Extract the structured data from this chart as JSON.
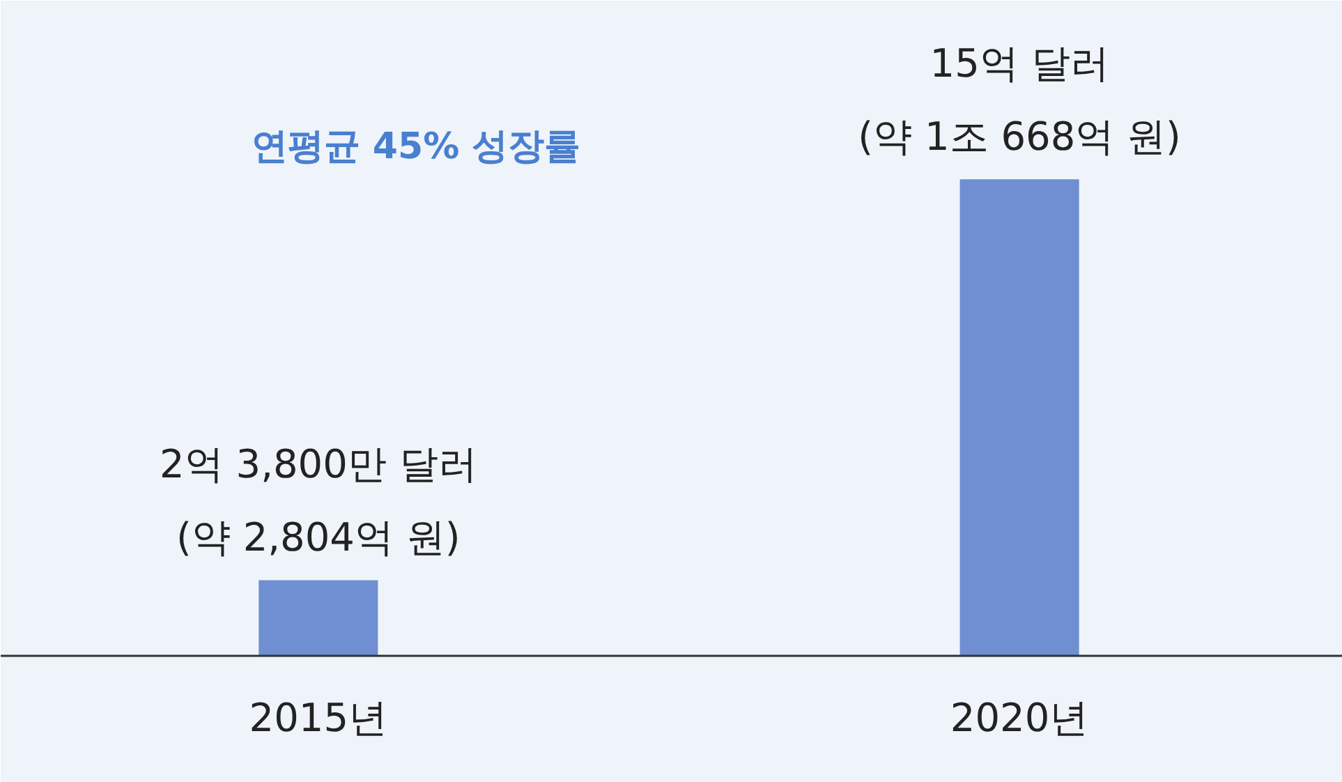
{
  "chart_data": {
    "type": "bar",
    "categories": [
      "2015년",
      "2020년"
    ],
    "values": [
      2.38,
      15
    ],
    "value_labels": [
      "2억 3,800만 달러\n(약 2,804억 원)",
      "15억 달러\n(약 1조 668억 원)"
    ],
    "color": "#6f8fd2",
    "annotations": [
      "연평균 45% 성장률"
    ],
    "grid": false
  }
}
